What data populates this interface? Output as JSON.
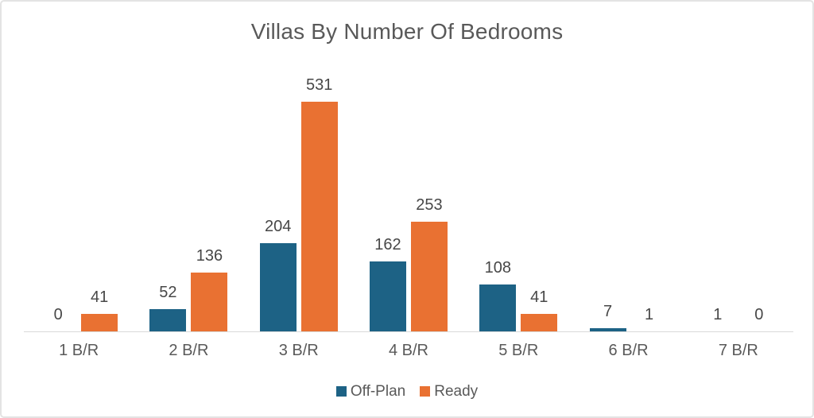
{
  "chart_data": {
    "type": "bar",
    "title": "Villas By Number Of Bedrooms",
    "categories": [
      "1 B/R",
      "2 B/R",
      "3 B/R",
      "4 B/R",
      "5 B/R",
      "6 B/R",
      "7 B/R"
    ],
    "series": [
      {
        "name": "Off-Plan",
        "color": "#1D6285",
        "values": [
          0,
          52,
          204,
          162,
          108,
          7,
          1
        ]
      },
      {
        "name": "Ready",
        "color": "#E97132",
        "values": [
          41,
          136,
          531,
          253,
          41,
          1,
          0
        ]
      }
    ],
    "ylim": [
      0,
      531
    ],
    "grid": false,
    "y_axis_visible": false,
    "data_labels": true,
    "legend_position": "bottom"
  },
  "style": {
    "title_color": "#595959",
    "data_label_color": "#474747",
    "axis_label_color": "#595959",
    "axis_line_color": "#D9D9D9",
    "frame_border_color": "#E3E3E3",
    "background": "#FFFFFF"
  }
}
